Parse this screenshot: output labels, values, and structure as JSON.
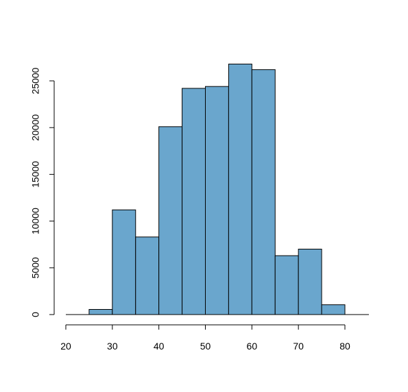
{
  "chart_data": {
    "type": "histogram",
    "title": "",
    "xlabel": "",
    "ylabel": "",
    "bins": [
      {
        "start": 25,
        "end": 30,
        "count": 550
      },
      {
        "start": 30,
        "end": 35,
        "count": 11200
      },
      {
        "start": 35,
        "end": 40,
        "count": 8300
      },
      {
        "start": 40,
        "end": 45,
        "count": 20100
      },
      {
        "start": 45,
        "end": 50,
        "count": 24200
      },
      {
        "start": 50,
        "end": 55,
        "count": 24400
      },
      {
        "start": 55,
        "end": 60,
        "count": 26800
      },
      {
        "start": 60,
        "end": 65,
        "count": 26200
      },
      {
        "start": 65,
        "end": 70,
        "count": 6300
      },
      {
        "start": 70,
        "end": 75,
        "count": 7000
      },
      {
        "start": 75,
        "end": 80,
        "count": 1050
      }
    ],
    "xlim": [
      20,
      80
    ],
    "ylim": [
      0,
      25000
    ],
    "x_ticks": [
      20,
      30,
      40,
      50,
      60,
      70,
      80
    ],
    "x_tick_labels": [
      "20",
      "30",
      "40",
      "50",
      "60",
      "70",
      "80"
    ],
    "y_ticks": [
      0,
      5000,
      10000,
      15000,
      20000,
      25000
    ],
    "y_tick_labels": [
      "0",
      "5000",
      "10000",
      "15000",
      "20000",
      "25000"
    ],
    "bar_color": "#6aa6cd",
    "edge_color": "#000000",
    "grid": false,
    "legend": "none"
  }
}
